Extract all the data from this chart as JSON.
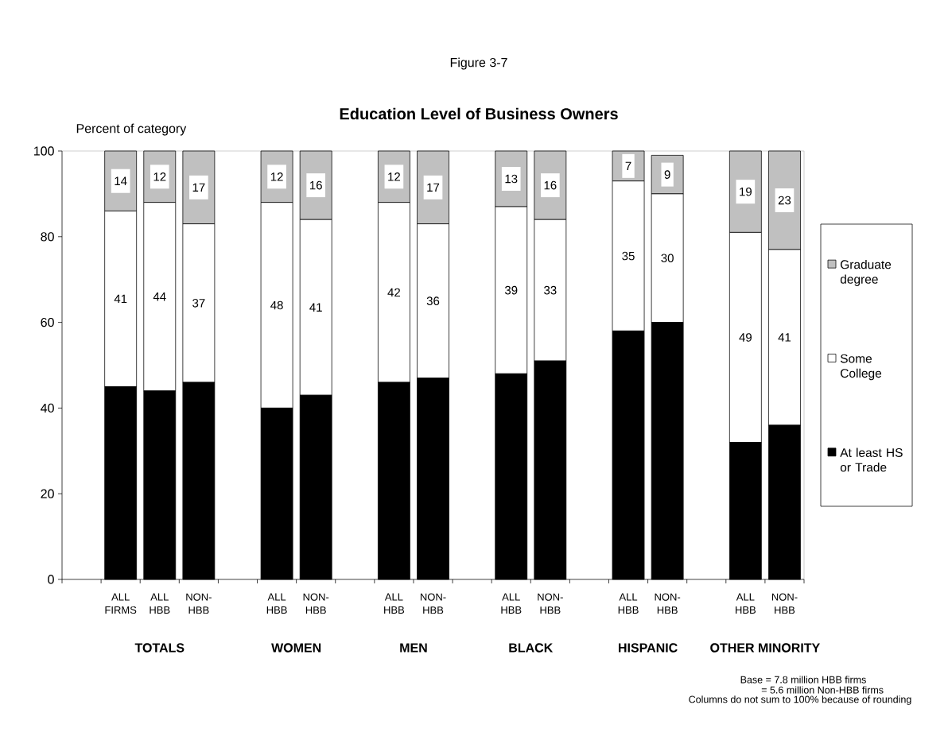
{
  "chart_data": {
    "type": "bar",
    "stacked": true,
    "title": "Education Level of Business Owners",
    "subtitle": "Figure 3-7",
    "ylabel": "Percent of category",
    "categories": [
      null,
      "ALL FIRMS",
      "ALL HBB",
      "NON-HBB",
      null,
      "ALL HBB",
      "NON-HBB",
      null,
      "ALL HBB",
      "NON-HBB",
      null,
      "ALL HBB",
      "NON-HBB",
      null,
      "ALL HBB",
      "NON-HBB",
      null,
      "ALL HBB",
      "NON-HBB"
    ],
    "series": [
      {
        "name": "At least HS or Trade",
        "color": "#000000",
        "values": [
          null,
          45,
          44,
          46,
          null,
          40,
          43,
          null,
          46,
          47,
          null,
          48,
          51,
          null,
          58,
          60,
          null,
          32,
          36
        ]
      },
      {
        "name": "Some College",
        "color": "#ffffff",
        "values": [
          null,
          41,
          44,
          37,
          null,
          48,
          41,
          null,
          42,
          36,
          null,
          39,
          33,
          null,
          35,
          30,
          null,
          49,
          41
        ],
        "value_labels": [
          null,
          "41",
          "44",
          "37",
          null,
          "48",
          "41",
          null,
          "42",
          "36",
          null,
          "39",
          "33",
          null,
          "35",
          "30",
          null,
          "49",
          "41"
        ]
      },
      {
        "name": "Graduate degree",
        "color": "#c0c0c0",
        "values": [
          null,
          14,
          12,
          17,
          null,
          12,
          16,
          null,
          12,
          17,
          null,
          13,
          16,
          null,
          7,
          9,
          null,
          19,
          23
        ],
        "value_labels": [
          null,
          "14",
          "12",
          "17",
          null,
          "12",
          "16",
          null,
          "12",
          "17",
          null,
          "13",
          "16",
          null,
          "7",
          "9",
          null,
          "19",
          "23"
        ]
      }
    ],
    "ylim": [
      0,
      100
    ],
    "yticks": [
      0,
      20,
      40,
      60,
      80,
      100
    ],
    "legend": "right",
    "annotations": [
      "TOTALS",
      "WOMEN",
      "MEN",
      "BLACK",
      "HISPANIC",
      "OTHER MINORITY",
      "Base = 7.8 million HBB firms",
      "= 5.6 million Non-HBB firms",
      "Columns do not sum to 100% because of rounding"
    ]
  }
}
